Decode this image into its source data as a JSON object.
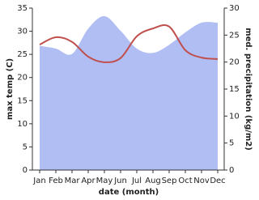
{
  "chart_data": {
    "type": "area_line",
    "categories": [
      "Jan",
      "Feb",
      "Mar",
      "Apr",
      "May",
      "Jun",
      "Jul",
      "Aug",
      "Sep",
      "Oct",
      "Nov",
      "Dec"
    ],
    "x_label": "date (month)",
    "y_label": "max temp (C)",
    "y2_label": "med. precipitation (kg/m2)",
    "ylim": [
      0,
      35
    ],
    "yticks": [
      0,
      5,
      10,
      15,
      20,
      25,
      30,
      35
    ],
    "y2lim": [
      0,
      30
    ],
    "y2ticks": [
      0,
      5,
      10,
      15,
      20,
      25,
      30
    ],
    "series": [
      {
        "name": "med. precipitation",
        "color": "#b0bef4",
        "axis": "y2",
        "kind": "area",
        "values": [
          23,
          22.5,
          21.5,
          26.2,
          28.5,
          25.8,
          22.5,
          21.7,
          23.2,
          25.5,
          27.3,
          27.3
        ]
      },
      {
        "name": "max temp",
        "color": "#c0504d",
        "axis": "y",
        "kind": "line",
        "values": [
          27.1,
          28.7,
          27.7,
          24.5,
          23.3,
          24.2,
          28.9,
          30.6,
          31,
          25.9,
          24.3,
          24
        ]
      }
    ]
  }
}
